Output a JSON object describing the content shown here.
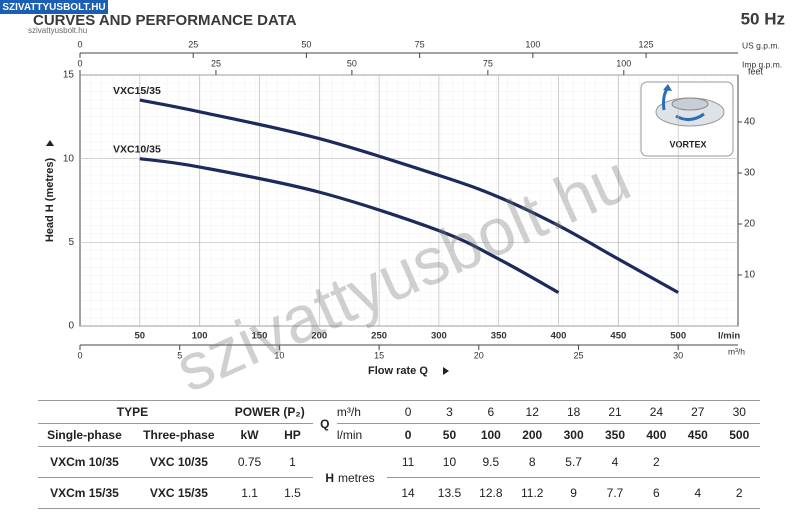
{
  "logo": "SZIVATTYUSBOLT.HU",
  "logo_url": "szivattyusbolt.hu",
  "watermark": "szivattyusbolt.hu",
  "chart_data": {
    "type": "line",
    "title": "CURVES AND PERFORMANCE DATA",
    "subtitle": "50 Hz",
    "x_label": "Flow rate Q",
    "x_unit": "l/min",
    "y_label": "Head H (metres)",
    "y2_label": "feet",
    "badge": "VORTEX",
    "xlim": [
      0,
      550
    ],
    "xticks": [
      50,
      100,
      150,
      200,
      250,
      300,
      350,
      400,
      450,
      500
    ],
    "ylim": [
      0,
      15
    ],
    "yticks": [
      0,
      5,
      10,
      15
    ],
    "y2lim": [
      0,
      49.21
    ],
    "y2ticks": [
      10,
      20,
      30,
      40
    ],
    "secondary_x_axes": [
      {
        "label": "US g.p.m.",
        "xlim": [
          0,
          145.3
        ],
        "xticks": [
          0,
          25,
          50,
          75,
          100,
          125
        ]
      },
      {
        "label": "Imp g.p.m.",
        "xlim": [
          0,
          121
        ],
        "xticks": [
          0,
          25,
          50,
          75,
          100
        ]
      },
      {
        "label": "m³/h",
        "xlim": [
          0,
          33
        ],
        "xticks": [
          0,
          5,
          10,
          15,
          20,
          25,
          30
        ]
      }
    ],
    "grid": true,
    "series": [
      {
        "name": "VXC15/35",
        "color": "#1c2a5c",
        "x": [
          50,
          100,
          200,
          300,
          350,
          400,
          450,
          500
        ],
        "values": [
          13.5,
          12.8,
          11.2,
          9,
          7.7,
          6,
          4,
          2
        ]
      },
      {
        "name": "VXC10/35",
        "color": "#1c2a5c",
        "x": [
          50,
          100,
          200,
          300,
          350,
          400
        ],
        "values": [
          10,
          9.5,
          8,
          5.7,
          4,
          2
        ]
      }
    ]
  },
  "table": {
    "type_header": "TYPE",
    "power_header": "POWER (P₂)",
    "q_header": "Q",
    "h_header": "H",
    "h_unit": "metres",
    "columns": [
      "Single-phase",
      "Three-phase",
      "kW",
      "HP"
    ],
    "q_units": [
      "m³/h",
      "l/min"
    ],
    "q_m3h": [
      0,
      3,
      6,
      12,
      18,
      21,
      24,
      27,
      30
    ],
    "q_lmin": [
      0,
      50,
      100,
      200,
      300,
      350,
      400,
      450,
      500
    ],
    "rows": [
      {
        "single": "VXCm 10/35",
        "three": "VXC 10/35",
        "kw": 0.75,
        "hp": 1,
        "h": [
          11,
          10,
          9.5,
          8,
          5.7,
          4,
          2
        ]
      },
      {
        "single": "VXCm 15/35",
        "three": "VXC 15/35",
        "kw": 1.1,
        "hp": 1.5,
        "h": [
          14,
          13.5,
          12.8,
          11.2,
          9,
          7.7,
          6,
          4,
          2
        ]
      }
    ]
  }
}
